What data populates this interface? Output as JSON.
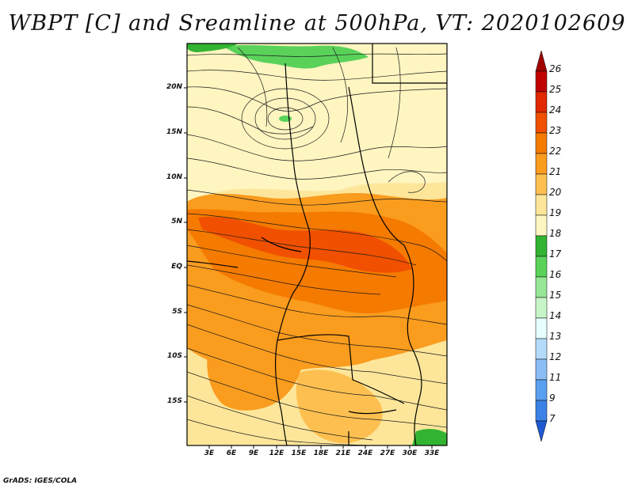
{
  "title": "WBPT [C] and Sreamline at 500hPa, VT: 2020102609",
  "footer": "GrADS: IGES/COLA",
  "map": {
    "lat_labels": [
      "20N",
      "15N",
      "10N",
      "5N",
      "EQ",
      "5S",
      "10S",
      "15S"
    ],
    "lon_labels": [
      "3E",
      "6E",
      "9E",
      "12E",
      "15E",
      "18E",
      "21E",
      "24E",
      "27E",
      "30E",
      "33E"
    ]
  },
  "colorbar": {
    "levels": [
      "26",
      "25",
      "24",
      "23",
      "22",
      "21",
      "20",
      "19",
      "18",
      "17",
      "16",
      "15",
      "14",
      "13",
      "12",
      "11",
      "9",
      "7"
    ],
    "colors": [
      "#a00000",
      "#c00000",
      "#e12800",
      "#f05000",
      "#f57a00",
      "#fa9c1e",
      "#fdc050",
      "#fde69a",
      "#fff5c0",
      "#32b432",
      "#5ad25a",
      "#96e696",
      "#c8f5c8",
      "#e6ffff",
      "#b4dcfa",
      "#8cbef5",
      "#5aa0f0",
      "#3c82e6",
      "#1e5ad2"
    ]
  }
}
